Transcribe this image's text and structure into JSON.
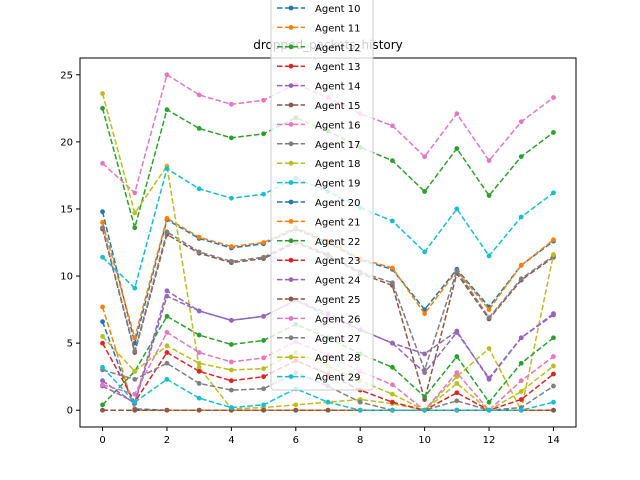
{
  "chart_data": {
    "type": "line",
    "title": "dropped_packets_history",
    "xlabel": "",
    "ylabel": "",
    "xlim": [
      -0.7,
      14.7
    ],
    "ylim": [
      -1.25,
      26.25
    ],
    "xticks": [
      0,
      2,
      4,
      6,
      8,
      10,
      12,
      14
    ],
    "yticks": [
      0,
      5,
      10,
      15,
      20,
      25
    ],
    "grid": false,
    "legend": "top-center",
    "x": [
      0,
      1,
      2,
      3,
      4,
      5,
      6,
      7,
      8,
      9,
      10,
      11,
      12,
      13,
      14
    ],
    "series": [
      {
        "name": "Agent 10",
        "color": "#1f77b4",
        "values": [
          14.8,
          5.0,
          14.2,
          12.8,
          12.1,
          12.4,
          13.5,
          12.5,
          11.2,
          10.5,
          7.5,
          10.5,
          7.7,
          10.8,
          12.6
        ]
      },
      {
        "name": "Agent 11",
        "color": "#ff7f0e",
        "values": [
          14.0,
          5.4,
          14.3,
          12.9,
          12.2,
          12.5,
          13.6,
          12.6,
          11.3,
          10.6,
          7.2,
          10.4,
          7.5,
          10.8,
          12.7
        ]
      },
      {
        "name": "Agent 12",
        "color": "#2ca02c",
        "values": [
          22.5,
          13.6,
          22.4,
          21.0,
          20.3,
          20.6,
          21.8,
          20.8,
          19.6,
          18.6,
          16.3,
          19.5,
          16.0,
          18.9,
          20.7
        ]
      },
      {
        "name": "Agent 13",
        "color": "#d62728",
        "values": [
          0.0,
          0.0,
          0.0,
          0.0,
          0.0,
          0.0,
          0.0,
          0.0,
          0.0,
          0.0,
          0.0,
          0.0,
          0.0,
          0.0,
          0.0
        ]
      },
      {
        "name": "Agent 14",
        "color": "#9467bd",
        "values": [
          2.2,
          0.5,
          8.5,
          7.4,
          6.7,
          7.0,
          8.2,
          7.0,
          6.0,
          5.0,
          2.8,
          5.8,
          2.4,
          5.4,
          7.1
        ]
      },
      {
        "name": "Agent 15",
        "color": "#8c564b",
        "values": [
          13.5,
          4.3,
          13.1,
          11.7,
          11.0,
          11.3,
          12.5,
          11.5,
          10.2,
          9.3,
          0.8,
          10.2,
          6.8,
          9.7,
          11.4
        ]
      },
      {
        "name": "Agent 16",
        "color": "#e377c2",
        "values": [
          18.4,
          16.2,
          25.0,
          23.5,
          22.8,
          23.1,
          24.3,
          23.3,
          22.1,
          21.2,
          18.9,
          22.1,
          18.6,
          21.5,
          23.3
        ]
      },
      {
        "name": "Agent 17",
        "color": "#7f7f7f",
        "values": [
          13.6,
          4.4,
          13.3,
          11.8,
          11.1,
          11.4,
          12.6,
          11.6,
          10.3,
          9.5,
          3.0,
          10.4,
          6.9,
          9.8,
          11.5
        ]
      },
      {
        "name": "Agent 18",
        "color": "#bcbd22",
        "values": [
          23.6,
          14.7,
          18.2,
          3.2,
          0.1,
          0.2,
          0.4,
          0.6,
          0.8,
          0.5,
          0.0,
          2.5,
          4.6,
          0.0,
          11.6
        ]
      },
      {
        "name": "Agent 19",
        "color": "#17becf",
        "values": [
          11.4,
          9.1,
          18.0,
          16.5,
          15.8,
          16.1,
          17.3,
          16.3,
          15.1,
          14.1,
          11.8,
          15.0,
          11.5,
          14.4,
          16.2
        ]
      },
      {
        "name": "Agent 20",
        "color": "#1f77b4",
        "values": [
          6.6,
          0.1,
          0.0,
          0.0,
          0.0,
          0.0,
          0.0,
          0.0,
          0.0,
          0.0,
          0.0,
          0.0,
          0.0,
          0.0,
          0.0
        ]
      },
      {
        "name": "Agent 21",
        "color": "#ff7f0e",
        "values": [
          7.7,
          0.0,
          0.0,
          0.0,
          0.0,
          0.0,
          0.0,
          0.0,
          0.0,
          0.0,
          0.0,
          0.0,
          0.0,
          0.0,
          0.0
        ]
      },
      {
        "name": "Agent 22",
        "color": "#2ca02c",
        "values": [
          0.4,
          2.9,
          7.0,
          5.6,
          4.9,
          5.2,
          6.4,
          5.4,
          4.2,
          3.2,
          1.0,
          4.0,
          0.6,
          3.5,
          5.4
        ]
      },
      {
        "name": "Agent 23",
        "color": "#d62728",
        "values": [
          5.0,
          0.6,
          4.3,
          2.9,
          2.2,
          2.5,
          3.7,
          2.7,
          1.5,
          0.6,
          0.0,
          1.3,
          0.0,
          0.8,
          2.7
        ]
      },
      {
        "name": "Agent 24",
        "color": "#9467bd",
        "values": [
          1.8,
          0.6,
          8.9,
          7.4,
          6.7,
          7.0,
          8.2,
          7.2,
          6.0,
          5.0,
          4.2,
          5.9,
          2.3,
          5.4,
          7.2
        ]
      },
      {
        "name": "Agent 25",
        "color": "#8c564b",
        "values": [
          0.0,
          0.0,
          0.0,
          0.0,
          0.0,
          0.0,
          0.0,
          0.0,
          0.0,
          0.0,
          0.0,
          0.0,
          0.0,
          0.0,
          0.0
        ]
      },
      {
        "name": "Agent 26",
        "color": "#e377c2",
        "values": [
          1.9,
          1.2,
          5.8,
          4.3,
          3.6,
          3.9,
          5.1,
          4.1,
          2.9,
          1.9,
          0.0,
          2.8,
          0.0,
          2.2,
          4.0
        ]
      },
      {
        "name": "Agent 27",
        "color": "#7f7f7f",
        "values": [
          3.0,
          2.3,
          3.5,
          2.0,
          1.5,
          1.6,
          2.8,
          1.8,
          0.6,
          0.0,
          0.0,
          0.7,
          0.0,
          0.2,
          1.8
        ]
      },
      {
        "name": "Agent 28",
        "color": "#bcbd22",
        "values": [
          5.5,
          2.9,
          4.8,
          3.5,
          3.0,
          3.1,
          4.3,
          3.3,
          2.2,
          1.2,
          0.0,
          2.0,
          0.0,
          1.4,
          3.3
        ]
      },
      {
        "name": "Agent 29",
        "color": "#17becf",
        "values": [
          3.2,
          0.6,
          2.3,
          0.9,
          0.2,
          0.4,
          1.6,
          0.6,
          0.0,
          0.0,
          0.0,
          0.0,
          0.0,
          0.0,
          0.6
        ]
      }
    ]
  }
}
